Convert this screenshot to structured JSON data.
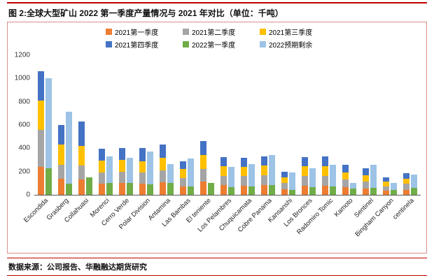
{
  "title": "图 2:全球大型矿山 2022 第一季度产量情况与 2021 年对比（单位：千吨）",
  "source": "数据来源：公司报告、华融融达期货研究",
  "accent_color": "#c00000",
  "frame_border_color": "#dc8c8c",
  "chart_data": {
    "type": "bar",
    "stacked": true,
    "legend_position": "top",
    "grid": false,
    "ylim": [
      0,
      1200
    ],
    "yticks": [
      0,
      200,
      400,
      600,
      800,
      1000,
      1200
    ],
    "categories": [
      "Escondida",
      "Grasberg",
      "Collahuasi",
      "Morenci",
      "Cerro Verde",
      "Polar Division",
      "Antamina",
      "Las Bambas",
      "El teniente",
      "Los Pelambres",
      "Chuquicamata",
      "Cobre Panama",
      "Kansanshi",
      "Los Bronces",
      "Radomiro Tomic",
      "Kamoto",
      "Sentinel",
      "Bingham Canyon",
      "centinela"
    ],
    "series": [
      {
        "name": "2021第一季度",
        "color": "#ED7D31",
        "group": "2021",
        "values": [
          240,
          140,
          130,
          95,
          100,
          95,
          108,
          75,
          115,
          85,
          80,
          85,
          50,
          80,
          80,
          65,
          55,
          35,
          45
        ]
      },
      {
        "name": "2021第二季度",
        "color": "#A5A5A5",
        "group": "2021",
        "values": [
          320,
          120,
          120,
          95,
          100,
          95,
          105,
          70,
          110,
          80,
          80,
          85,
          50,
          80,
          85,
          65,
          60,
          40,
          50
        ]
      },
      {
        "name": "2021第三季度",
        "color": "#FFC000",
        "group": "2021",
        "values": [
          250,
          170,
          170,
          105,
          100,
          100,
          107,
          75,
          115,
          80,
          80,
          80,
          50,
          85,
          80,
          65,
          55,
          40,
          45
        ]
      },
      {
        "name": "2021第四季度",
        "color": "#4472C4",
        "group": "2021",
        "values": [
          250,
          170,
          210,
          100,
          100,
          110,
          110,
          70,
          120,
          80,
          80,
          80,
          50,
          80,
          85,
          65,
          60,
          35,
          45
        ]
      },
      {
        "name": "2022第一季度",
        "color": "#70AD47",
        "group": "2022",
        "values": [
          230,
          95,
          150,
          100,
          105,
          90,
          105,
          75,
          105,
          65,
          70,
          85,
          45,
          65,
          70,
          55,
          60,
          45,
          60
        ]
      },
      {
        "name": "2022预期剩余",
        "color": "#9DC3E6",
        "group": "2022",
        "values": [
          770,
          620,
          0,
          230,
          215,
          285,
          160,
          235,
          0,
          175,
          195,
          260,
          145,
          165,
          190,
          50,
          200,
          60,
          115
        ]
      }
    ]
  }
}
